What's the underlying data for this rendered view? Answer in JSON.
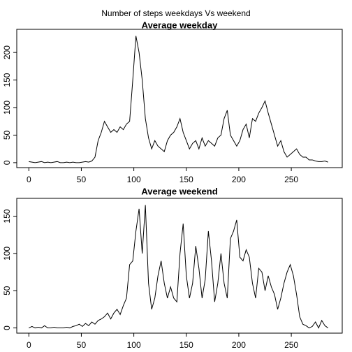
{
  "title": "Number of steps weekdays Vs weekend",
  "chart_data": [
    {
      "type": "line",
      "title": "Average weekday",
      "color": "#000000",
      "x": [
        0,
        3,
        6,
        9,
        12,
        15,
        18,
        21,
        24,
        27,
        30,
        33,
        36,
        39,
        42,
        45,
        48,
        51,
        54,
        57,
        60,
        63,
        66,
        69,
        72,
        75,
        78,
        81,
        84,
        87,
        90,
        93,
        96,
        99,
        102,
        105,
        108,
        111,
        114,
        117,
        120,
        123,
        126,
        129,
        132,
        135,
        138,
        141,
        144,
        147,
        150,
        153,
        156,
        159,
        162,
        165,
        168,
        171,
        174,
        177,
        180,
        183,
        186,
        189,
        192,
        195,
        198,
        201,
        204,
        207,
        210,
        213,
        216,
        219,
        222,
        225,
        228,
        231,
        234,
        237,
        240,
        243,
        246,
        249,
        252,
        255,
        258,
        261,
        264,
        267,
        270,
        273,
        276,
        279,
        282,
        285
      ],
      "values": [
        2,
        1,
        0,
        1,
        2,
        0,
        1,
        0,
        1,
        2,
        0,
        0,
        1,
        0,
        1,
        0,
        0,
        1,
        2,
        1,
        3,
        10,
        40,
        55,
        75,
        65,
        55,
        60,
        55,
        65,
        60,
        70,
        75,
        150,
        230,
        200,
        150,
        80,
        45,
        25,
        40,
        30,
        25,
        20,
        40,
        50,
        55,
        65,
        80,
        55,
        40,
        25,
        35,
        40,
        25,
        45,
        30,
        40,
        35,
        30,
        45,
        50,
        80,
        95,
        50,
        40,
        30,
        40,
        60,
        70,
        45,
        80,
        75,
        90,
        100,
        112,
        90,
        70,
        50,
        30,
        40,
        20,
        10,
        15,
        20,
        25,
        15,
        10,
        10,
        5,
        5,
        3,
        2,
        2,
        3,
        1
      ],
      "xlim": [
        -11.5,
        298.5
      ],
      "xticks": [
        0,
        50,
        100,
        150,
        200,
        250
      ],
      "ylim": [
        -9,
        242
      ],
      "yticks": [
        0,
        50,
        100,
        150,
        200
      ]
    },
    {
      "type": "line",
      "title": "Average weekend",
      "color": "#000000",
      "x": [
        0,
        3,
        6,
        9,
        12,
        15,
        18,
        21,
        24,
        27,
        30,
        33,
        36,
        39,
        42,
        45,
        48,
        51,
        54,
        57,
        60,
        63,
        66,
        69,
        72,
        75,
        78,
        81,
        84,
        87,
        90,
        93,
        96,
        99,
        102,
        105,
        108,
        111,
        114,
        117,
        120,
        123,
        126,
        129,
        132,
        135,
        138,
        141,
        144,
        147,
        150,
        153,
        156,
        159,
        162,
        165,
        168,
        171,
        174,
        177,
        180,
        183,
        186,
        189,
        192,
        195,
        198,
        201,
        204,
        207,
        210,
        213,
        216,
        219,
        222,
        225,
        228,
        231,
        234,
        237,
        240,
        243,
        246,
        249,
        252,
        255,
        258,
        261,
        264,
        267,
        270,
        273,
        276,
        279,
        282,
        285
      ],
      "values": [
        0,
        2,
        0,
        1,
        0,
        3,
        0,
        0,
        1,
        0,
        0,
        0,
        1,
        0,
        2,
        3,
        5,
        2,
        6,
        3,
        8,
        5,
        10,
        12,
        15,
        20,
        12,
        20,
        25,
        18,
        30,
        40,
        85,
        90,
        130,
        160,
        100,
        165,
        60,
        25,
        40,
        70,
        90,
        60,
        40,
        55,
        40,
        35,
        100,
        140,
        70,
        40,
        60,
        110,
        80,
        40,
        65,
        130,
        90,
        35,
        60,
        100,
        60,
        40,
        120,
        130,
        145,
        95,
        90,
        105,
        95,
        60,
        40,
        80,
        75,
        50,
        70,
        55,
        45,
        25,
        40,
        60,
        75,
        85,
        70,
        45,
        15,
        5,
        3,
        0,
        2,
        8,
        0,
        10,
        3,
        0
      ],
      "xlim": [
        -11.5,
        298.5
      ],
      "xticks": [
        0,
        50,
        100,
        150,
        200,
        250
      ],
      "ylim": [
        -7,
        174
      ],
      "yticks": [
        0,
        50,
        100,
        150
      ]
    }
  ]
}
